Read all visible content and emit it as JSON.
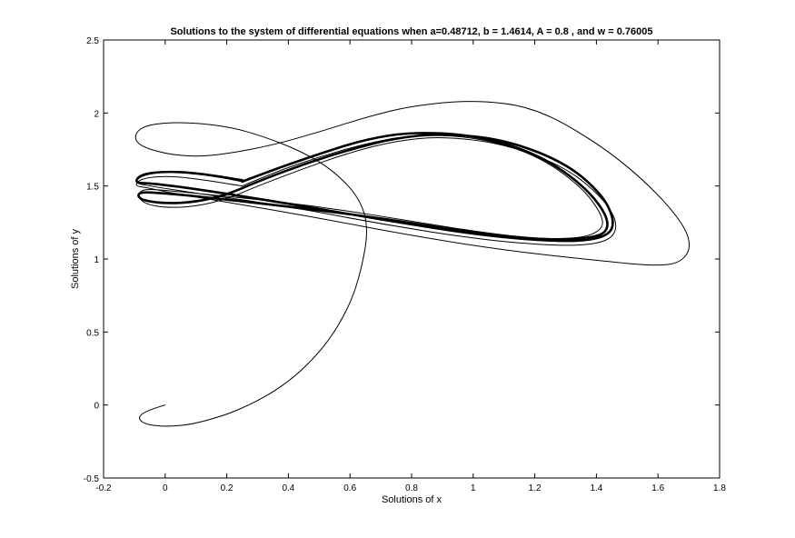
{
  "chart_data": {
    "type": "line",
    "title": "Solutions to the system of differential equations when a=0.48712, b = 1.4614, A = 0.8 , and w = 0.76005",
    "xlabel": "Solutions of x",
    "ylabel": "Solutions of y",
    "xlim": [
      -0.2,
      1.8
    ],
    "ylim": [
      -0.5,
      2.5
    ],
    "xticks": [
      "-0.2",
      "0",
      "0.2",
      "0.4",
      "0.6",
      "0.8",
      "1",
      "1.2",
      "1.4",
      "1.6",
      "1.8"
    ],
    "yticks": [
      "-0.5",
      "0",
      "0.5",
      "1",
      "1.5",
      "2",
      "2.5"
    ],
    "grid": false,
    "line_color": "#000000",
    "series": [
      {
        "segments": [
          {
            "lw": 1,
            "points": [
              [
                0,
                0
              ],
              [
                -0.05,
                -0.03
              ],
              [
                -0.09,
                -0.08
              ],
              [
                -0.07,
                -0.13
              ],
              [
                0,
                -0.15
              ],
              [
                0.1,
                -0.13
              ],
              [
                0.25,
                -0.03
              ],
              [
                0.4,
                0.15
              ],
              [
                0.52,
                0.4
              ],
              [
                0.6,
                0.68
              ],
              [
                0.64,
                0.95
              ],
              [
                0.66,
                1.22
              ],
              [
                0.63,
                1.42
              ],
              [
                0.55,
                1.6
              ],
              [
                0.45,
                1.73
              ],
              [
                0.32,
                1.84
              ],
              [
                0.2,
                1.91
              ],
              [
                0.05,
                1.94
              ],
              [
                -0.06,
                1.92
              ],
              [
                -0.1,
                1.86
              ],
              [
                -0.09,
                1.78
              ],
              [
                0,
                1.72
              ],
              [
                0.1,
                1.7
              ],
              [
                0.2,
                1.72
              ],
              [
                0.35,
                1.78
              ],
              [
                0.5,
                1.87
              ],
              [
                0.65,
                1.97
              ],
              [
                0.8,
                2.05
              ],
              [
                1,
                2.09
              ],
              [
                1.2,
                2.04
              ],
              [
                1.4,
                1.8
              ],
              [
                1.55,
                1.55
              ],
              [
                1.67,
                1.28
              ],
              [
                1.71,
                1.1
              ],
              [
                1.68,
                0.98
              ],
              [
                1.6,
                0.95
              ],
              [
                1.4,
                0.99
              ],
              [
                1.1,
                1.06
              ],
              [
                0.8,
                1.16
              ],
              [
                0.5,
                1.28
              ],
              [
                0.2,
                1.39
              ],
              [
                0,
                1.46
              ],
              [
                -0.06,
                1.49
              ],
              [
                -0.1,
                1.5
              ],
              [
                -0.08,
                1.55
              ],
              [
                0,
                1.57
              ],
              [
                0.1,
                1.55
              ],
              [
                0.25,
                1.5
              ]
            ]
          },
          {
            "lw": 1,
            "points": [
              [
                0.25,
                1.5
              ],
              [
                0.35,
                1.59
              ],
              [
                0.5,
                1.7
              ],
              [
                0.65,
                1.79
              ],
              [
                0.8,
                1.85
              ],
              [
                1,
                1.84
              ],
              [
                1.2,
                1.72
              ],
              [
                1.35,
                1.5
              ],
              [
                1.42,
                1.3
              ],
              [
                1.42,
                1.2
              ],
              [
                1.35,
                1.14
              ],
              [
                1.2,
                1.14
              ],
              [
                1,
                1.19
              ],
              [
                0.8,
                1.26
              ],
              [
                0.5,
                1.36
              ],
              [
                0.2,
                1.43
              ],
              [
                0,
                1.47
              ],
              [
                -0.07,
                1.48
              ],
              [
                -0.09,
                1.44
              ],
              [
                -0.07,
                1.38
              ],
              [
                0,
                1.35
              ],
              [
                0.1,
                1.36
              ],
              [
                0.2,
                1.41
              ],
              [
                0.3,
                1.5
              ],
              [
                0.45,
                1.62
              ],
              [
                0.6,
                1.73
              ],
              [
                0.75,
                1.81
              ],
              [
                0.9,
                1.84
              ],
              [
                1.1,
                1.79
              ],
              [
                1.3,
                1.63
              ],
              [
                1.42,
                1.42
              ],
              [
                1.47,
                1.25
              ],
              [
                1.45,
                1.13
              ],
              [
                1.35,
                1.09
              ],
              [
                1.2,
                1.1
              ],
              [
                1,
                1.14
              ],
              [
                0.7,
                1.24
              ],
              [
                0.4,
                1.36
              ],
              [
                0.1,
                1.45
              ],
              [
                -0.05,
                1.5
              ],
              [
                -0.1,
                1.52
              ],
              [
                -0.08,
                1.57
              ],
              [
                0,
                1.6
              ],
              [
                0.1,
                1.59
              ],
              [
                0.25,
                1.53
              ]
            ]
          },
          {
            "lw": 2.6,
            "points": [
              [
                0.25,
                1.53
              ],
              [
                0.35,
                1.61
              ],
              [
                0.5,
                1.72
              ],
              [
                0.65,
                1.82
              ],
              [
                0.8,
                1.87
              ],
              [
                1,
                1.85
              ],
              [
                1.2,
                1.73
              ],
              [
                1.35,
                1.52
              ],
              [
                1.43,
                1.32
              ],
              [
                1.44,
                1.19
              ],
              [
                1.38,
                1.14
              ],
              [
                1.2,
                1.13
              ],
              [
                1,
                1.18
              ],
              [
                0.7,
                1.28
              ],
              [
                0.4,
                1.36
              ],
              [
                0.1,
                1.43
              ],
              [
                0,
                1.45
              ],
              [
                -0.08,
                1.46
              ],
              [
                -0.09,
                1.43
              ],
              [
                -0.07,
                1.4
              ],
              [
                0,
                1.38
              ],
              [
                0.1,
                1.39
              ],
              [
                0.2,
                1.44
              ],
              [
                0.3,
                1.53
              ],
              [
                0.45,
                1.65
              ],
              [
                0.6,
                1.75
              ],
              [
                0.75,
                1.83
              ],
              [
                0.9,
                1.86
              ],
              [
                1.1,
                1.82
              ],
              [
                1.3,
                1.66
              ],
              [
                1.42,
                1.44
              ],
              [
                1.46,
                1.26
              ],
              [
                1.44,
                1.16
              ],
              [
                1.35,
                1.12
              ],
              [
                1.2,
                1.13
              ],
              [
                1,
                1.17
              ],
              [
                0.7,
                1.27
              ],
              [
                0.4,
                1.38
              ],
              [
                0.1,
                1.48
              ],
              [
                -0.05,
                1.52
              ],
              [
                -0.1,
                1.52
              ],
              [
                -0.08,
                1.58
              ],
              [
                0,
                1.6
              ],
              [
                0.1,
                1.59
              ],
              [
                0.25,
                1.54
              ]
            ]
          }
        ]
      }
    ]
  }
}
